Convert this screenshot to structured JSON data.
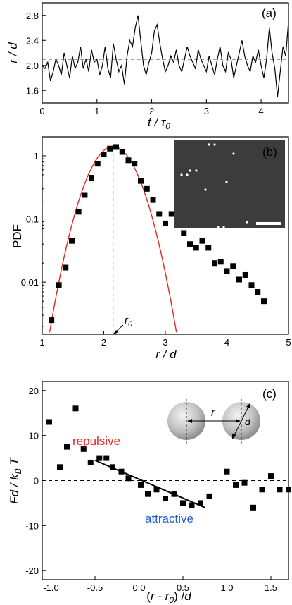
{
  "colors": {
    "fit_curve": "#e8251f",
    "repulsive": "#e8251f",
    "attractive": "#1f5bd8",
    "marker": "#000000",
    "inset_bg": "#3c3c3c"
  },
  "chart_data": [
    {
      "panel": "(a)",
      "type": "line",
      "xlabel": "t / τ0",
      "ylabel": "r / d",
      "xlim": [
        0,
        4.5
      ],
      "ylim": [
        1.4,
        3.0
      ],
      "xticks": [
        "0",
        "1",
        "2",
        "3",
        "4"
      ],
      "yticks": [
        "1.6",
        "2.0",
        "2.4",
        "2.8"
      ],
      "reference_line_y": 2.1,
      "series": [
        {
          "x": [
            0,
            0.05,
            0.1,
            0.15,
            0.2,
            0.25,
            0.3,
            0.35,
            0.4,
            0.45,
            0.5,
            0.55,
            0.6,
            0.65,
            0.7,
            0.75,
            0.8,
            0.85,
            0.9,
            0.95,
            1.0,
            1.05,
            1.1,
            1.15,
            1.2,
            1.25,
            1.3,
            1.35,
            1.4,
            1.45,
            1.5,
            1.55,
            1.6,
            1.65,
            1.7,
            1.75,
            1.8,
            1.85,
            1.9,
            1.95,
            2.0,
            2.05,
            2.1,
            2.15,
            2.2,
            2.25,
            2.3,
            2.35,
            2.4,
            2.45,
            2.5,
            2.55,
            2.6,
            2.65,
            2.7,
            2.75,
            2.8,
            2.85,
            2.9,
            2.95,
            3.0,
            3.05,
            3.1,
            3.15,
            3.2,
            3.25,
            3.3,
            3.35,
            3.4,
            3.45,
            3.5,
            3.55,
            3.6,
            3.65,
            3.7,
            3.75,
            3.8,
            3.85,
            3.9,
            3.95,
            4.0,
            4.05,
            4.1,
            4.15,
            4.2,
            4.25,
            4.3,
            4.35,
            4.4,
            4.45,
            4.5
          ],
          "y": [
            2.0,
            1.95,
            2.05,
            1.75,
            1.9,
            2.1,
            2.0,
            1.85,
            2.2,
            2.0,
            1.8,
            2.15,
            1.95,
            2.05,
            2.3,
            1.95,
            2.1,
            1.9,
            2.25,
            2.05,
            2.1,
            1.85,
            2.0,
            2.3,
            1.95,
            1.8,
            2.35,
            2.1,
            1.9,
            2.0,
            1.7,
            2.15,
            2.4,
            2.3,
            2.6,
            2.8,
            2.4,
            2.0,
            1.85,
            2.05,
            2.2,
            2.55,
            2.65,
            2.35,
            2.1,
            1.9,
            2.0,
            2.15,
            2.05,
            2.25,
            2.0,
            1.9,
            2.1,
            2.3,
            2.15,
            2.05,
            1.95,
            2.25,
            2.1,
            2.0,
            1.9,
            2.15,
            2.0,
            1.85,
            2.1,
            2.3,
            2.0,
            1.9,
            2.2,
            2.1,
            1.8,
            2.0,
            2.2,
            2.4,
            2.15,
            2.0,
            1.9,
            2.15,
            2.05,
            2.25,
            2.0,
            1.8,
            2.1,
            2.6,
            2.2,
            1.95,
            1.5,
            1.9,
            2.3,
            2.15,
            2.7
          ]
        }
      ]
    },
    {
      "panel": "(b)",
      "type": "scatter",
      "xlabel": "r / d",
      "ylabel": "PDF",
      "yscale": "log",
      "xlim": [
        1,
        5
      ],
      "ylim": [
        0.0015,
        2
      ],
      "xticks": [
        "1",
        "2",
        "3",
        "4",
        "5"
      ],
      "yticks": [
        "0.01",
        "0.1",
        "1"
      ],
      "annotation": "r0",
      "r0": 2.15,
      "fit_curve": {
        "mu": 2.15,
        "sigma": 0.28,
        "peak": 1.4
      },
      "series": [
        {
          "x": [
            1.15,
            1.27,
            1.38,
            1.48,
            1.59,
            1.69,
            1.8,
            1.9,
            2.0,
            2.1,
            2.2,
            2.3,
            2.4,
            2.5,
            2.6,
            2.7,
            2.8,
            2.9,
            3.0,
            3.1,
            3.2,
            3.3,
            3.4,
            3.5,
            3.6,
            3.7,
            3.8,
            3.9,
            4.0,
            4.1,
            4.2,
            4.3,
            4.4,
            4.5,
            4.6
          ],
          "y": [
            0.0025,
            0.009,
            0.017,
            0.045,
            0.13,
            0.24,
            0.45,
            0.75,
            1.05,
            1.3,
            1.38,
            1.15,
            0.85,
            0.75,
            0.4,
            0.3,
            0.2,
            0.12,
            0.085,
            0.12,
            0.09,
            0.06,
            0.04,
            0.035,
            0.045,
            0.035,
            0.02,
            0.021,
            0.015,
            0.018,
            0.011,
            0.013,
            0.009,
            0.007,
            0.005
          ]
        }
      ]
    },
    {
      "panel": "(c)",
      "type": "scatter",
      "xlabel": "(r - r0) / d",
      "ylabel": "Fd / kB T",
      "xlim": [
        -1.1,
        1.7
      ],
      "ylim": [
        -22,
        22
      ],
      "xticks": [
        "-1.0",
        "-0.5",
        "0.0",
        "0.5",
        "1.0",
        "1.5"
      ],
      "yticks": [
        "-20",
        "-10",
        "0",
        "10",
        "20"
      ],
      "region_labels": [
        "repulsive",
        "attractive"
      ],
      "inset_labels": [
        "r",
        "d"
      ],
      "fit_line": {
        "x": [
          -0.5,
          0.75
        ],
        "y": [
          4.5,
          -6.0
        ]
      },
      "series": [
        {
          "x": [
            -1.02,
            -0.9,
            -0.72,
            -0.82,
            -0.63,
            -0.55,
            -0.45,
            -0.37,
            -0.3,
            -0.2,
            -0.12,
            0.02,
            0.1,
            0.2,
            0.3,
            0.4,
            0.5,
            0.6,
            0.7,
            0.8,
            1.0,
            1.1,
            1.2,
            1.3,
            1.4,
            1.5,
            1.6,
            1.7
          ],
          "y": [
            13,
            3,
            16,
            7.5,
            7,
            4,
            5,
            5,
            3,
            2,
            0.5,
            -1,
            -3,
            -2,
            -4,
            -3,
            -5,
            -5.5,
            -5,
            -3.5,
            2,
            -1,
            -0.5,
            -6,
            -2,
            1,
            -2,
            -2
          ]
        }
      ]
    }
  ]
}
